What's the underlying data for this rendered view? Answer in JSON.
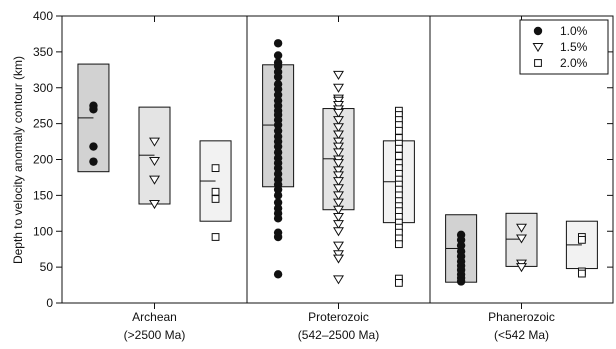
{
  "chart_data": {
    "type": "box-scatter",
    "ylabel": "Depth to velocity anomaly contour (km)",
    "ylim": [
      0,
      400
    ],
    "yticks": [
      0,
      50,
      100,
      150,
      200,
      250,
      300,
      350,
      400
    ],
    "groups": [
      {
        "name": "Archean",
        "subname": "(>2500 Ma)",
        "series": [
          {
            "name": "1.0%",
            "box": {
              "low": 183,
              "high": 333,
              "median": 258
            },
            "points": [
              275,
              270,
              218,
              197
            ]
          },
          {
            "name": "1.5%",
            "box": {
              "low": 138,
              "high": 273,
              "median": 206
            },
            "points": [
              225,
              198,
              172,
              138
            ]
          },
          {
            "name": "2.0%",
            "box": {
              "low": 114,
              "high": 226,
              "median": 170
            },
            "points": [
              188,
              155,
              145,
              92
            ]
          }
        ]
      },
      {
        "name": "Proterozoic",
        "subname": "(542–2500 Ma)",
        "series": [
          {
            "name": "1.0%",
            "box": {
              "low": 162,
              "high": 332,
              "median": 248
            },
            "points": [
              362,
              345,
              335,
              330,
              322,
              315,
              305,
              298,
              290,
              282,
              275,
              268,
              262,
              255,
              248,
              240,
              232,
              225,
              218,
              210,
              202,
              195,
              188,
              180,
              172,
              165,
              158,
              150,
              140,
              132,
              125,
              118,
              98,
              92,
              40
            ]
          },
          {
            "name": "1.5%",
            "box": {
              "low": 130,
              "high": 271,
              "median": 201
            },
            "points": [
              318,
              300,
              285,
              282,
              276,
              270,
              265,
              255,
              245,
              235,
              225,
              218,
              210,
              200,
              195,
              185,
              178,
              170,
              160,
              150,
              140,
              130,
              120,
              110,
              100,
              80,
              68,
              62,
              33
            ]
          },
          {
            "name": "2.0%",
            "box": {
              "low": 112,
              "high": 226,
              "median": 169
            },
            "points": [
              268,
              262,
              255,
              248,
              240,
              230,
              222,
              215,
              205,
              195,
              188,
              180,
              172,
              165,
              158,
              150,
              142,
              135,
              128,
              120,
              112,
              105,
              98,
              90,
              82,
              34,
              28
            ]
          }
        ]
      },
      {
        "name": "Phanerozoic",
        "subname": "(<542 Ma)",
        "series": [
          {
            "name": "1.0%",
            "box": {
              "low": 29,
              "high": 123,
              "median": 76
            },
            "points": [
              95,
              88,
              80,
              72,
              65,
              58,
              52,
              46,
              40,
              35,
              30
            ]
          },
          {
            "name": "1.5%",
            "box": {
              "low": 51,
              "high": 125,
              "median": 89
            },
            "points": [
              105,
              90,
              55,
              50
            ]
          },
          {
            "name": "2.0%",
            "box": {
              "low": 48,
              "high": 114,
              "median": 81
            },
            "points": [
              92,
              88,
              44,
              41
            ]
          }
        ]
      }
    ],
    "legend": {
      "position": "top-right",
      "entries": [
        {
          "label": "1.0%",
          "marker": "filled-circle"
        },
        {
          "label": "1.5%",
          "marker": "open-triangle-down"
        },
        {
          "label": "2.0%",
          "marker": "open-square"
        }
      ]
    },
    "box_colors": [
      "#d2d2d2",
      "#e4e4e4",
      "#f2f2f2"
    ]
  }
}
